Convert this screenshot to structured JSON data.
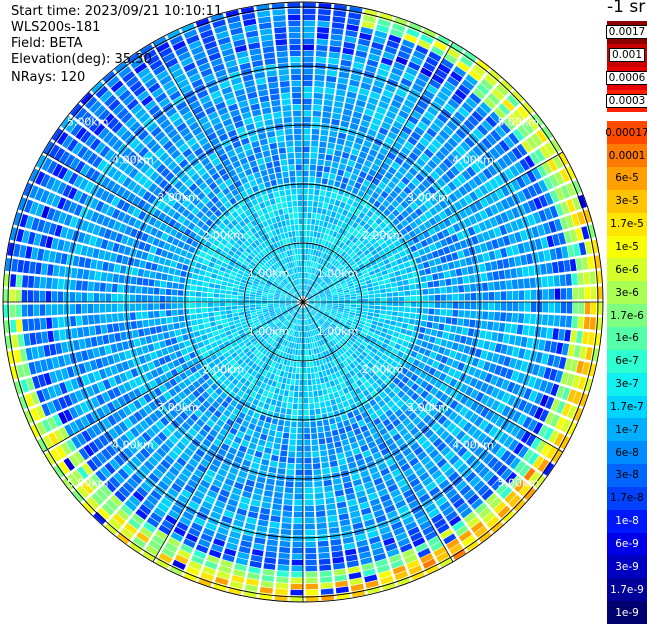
{
  "info": {
    "start_time": "Start time: 2023/09/21 10:10:11",
    "instrument": "WLS200s-181",
    "field": "Field: BETA",
    "elevation": "Elevation(deg): 35.30",
    "nrays": "NRays: 120"
  },
  "units": "-1 sr",
  "range_labels": [
    "1.00km",
    "2.00km",
    "3.00km",
    "4.00km",
    "5.00km"
  ],
  "colorbar": [
    {
      "label": "0.0017",
      "color": "#8b0000"
    },
    {
      "label": "0.001",
      "color": "#c80000"
    },
    {
      "label": "0.0006",
      "color": "#e60000"
    },
    {
      "label": "0.0003",
      "color": "#ff2000"
    },
    {
      "label": "0.00017",
      "color": "#ff4a00"
    },
    {
      "label": "0.0001",
      "color": "#ff7a00"
    },
    {
      "label": "6e-5",
      "color": "#ffa000"
    },
    {
      "label": "3e-5",
      "color": "#ffc400"
    },
    {
      "label": "1.7e-5",
      "color": "#ffe600"
    },
    {
      "label": "1e-5",
      "color": "#f7ff00"
    },
    {
      "label": "6e-6",
      "color": "#d6ff29"
    },
    {
      "label": "3e-6",
      "color": "#aaff55"
    },
    {
      "label": "1.7e-6",
      "color": "#7dff80"
    },
    {
      "label": "1e-6",
      "color": "#55ffaa"
    },
    {
      "label": "6e-7",
      "color": "#2effd0"
    },
    {
      "label": "3e-7",
      "color": "#10f0f0"
    },
    {
      "label": "1.7e-7",
      "color": "#00d4ff"
    },
    {
      "label": "1e-7",
      "color": "#00b0ff"
    },
    {
      "label": "6e-8",
      "color": "#008cff"
    },
    {
      "label": "3e-8",
      "color": "#0066ff"
    },
    {
      "label": "1.7e-8",
      "color": "#0040ff"
    },
    {
      "label": "1e-8",
      "color": "#0018ff"
    },
    {
      "label": "6e-9",
      "color": "#0000e8"
    },
    {
      "label": "3e-9",
      "color": "#0000c0"
    },
    {
      "label": "1.7e-9",
      "color": "#00009a"
    },
    {
      "label": "1e-9",
      "color": "#00006e"
    }
  ]
}
